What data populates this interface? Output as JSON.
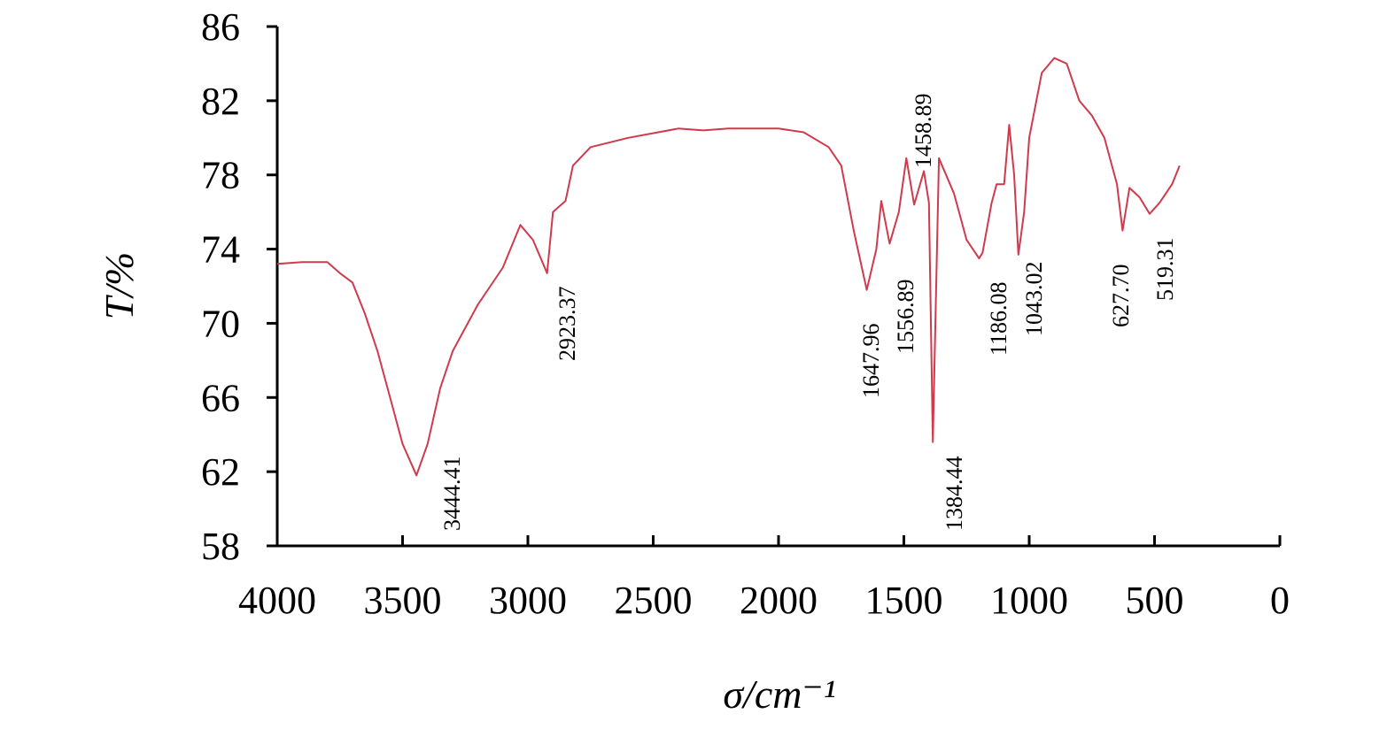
{
  "chart_data": {
    "type": "line",
    "x_label": "σ/cm⁻¹",
    "y_label": "T/%",
    "xlim": [
      4000,
      0
    ],
    "ylim": [
      58,
      86
    ],
    "xticks": [
      4000,
      3500,
      3000,
      2500,
      2000,
      1500,
      1000,
      500,
      0
    ],
    "yticks": [
      58,
      62,
      66,
      70,
      74,
      78,
      82,
      86
    ],
    "x": [
      4000,
      3900,
      3800,
      3750,
      3700,
      3650,
      3600,
      3550,
      3500,
      3444.41,
      3400,
      3350,
      3300,
      3200,
      3100,
      3030,
      2980,
      2923.37,
      2900,
      2850,
      2820,
      2750,
      2600,
      2400,
      2300,
      2200,
      2000,
      1900,
      1800,
      1750,
      1700,
      1647.96,
      1610,
      1590,
      1556.89,
      1520,
      1490,
      1458.89,
      1420,
      1400,
      1384.44,
      1360,
      1300,
      1250,
      1200,
      1186.08,
      1150,
      1130,
      1100,
      1080,
      1060,
      1043.02,
      1020,
      1000,
      950,
      900,
      850,
      800,
      750,
      700,
      650,
      627.7,
      600,
      560,
      519.31,
      480,
      430,
      400
    ],
    "series": [
      {
        "color": "#cf3a4c",
        "values": [
          73.2,
          73.3,
          73.3,
          72.7,
          72.2,
          70.5,
          68.5,
          66,
          63.5,
          61.8,
          63.5,
          66.5,
          68.5,
          71,
          73,
          75.3,
          74.5,
          72.7,
          76,
          76.6,
          78.5,
          79.5,
          80,
          80.5,
          80.4,
          80.5,
          80.5,
          80.3,
          79.5,
          78.5,
          75,
          71.8,
          74,
          76.6,
          74.3,
          76,
          78.9,
          76.4,
          78.2,
          76.5,
          63.6,
          78.9,
          77,
          74.5,
          73.5,
          73.8,
          76.5,
          77.5,
          77.5,
          80.7,
          78,
          73.7,
          76,
          80,
          83.5,
          84.3,
          84,
          82,
          81.2,
          80,
          77.5,
          75,
          77.3,
          76.8,
          75.9,
          76.5,
          77.5,
          78.5
        ]
      }
    ],
    "annotations": [
      "3444.41",
      "2923.37",
      "1647.96",
      "1556.89",
      "1458.89",
      "1384.44",
      "1186.08",
      "1043.02",
      "627.70",
      "519.31"
    ]
  }
}
